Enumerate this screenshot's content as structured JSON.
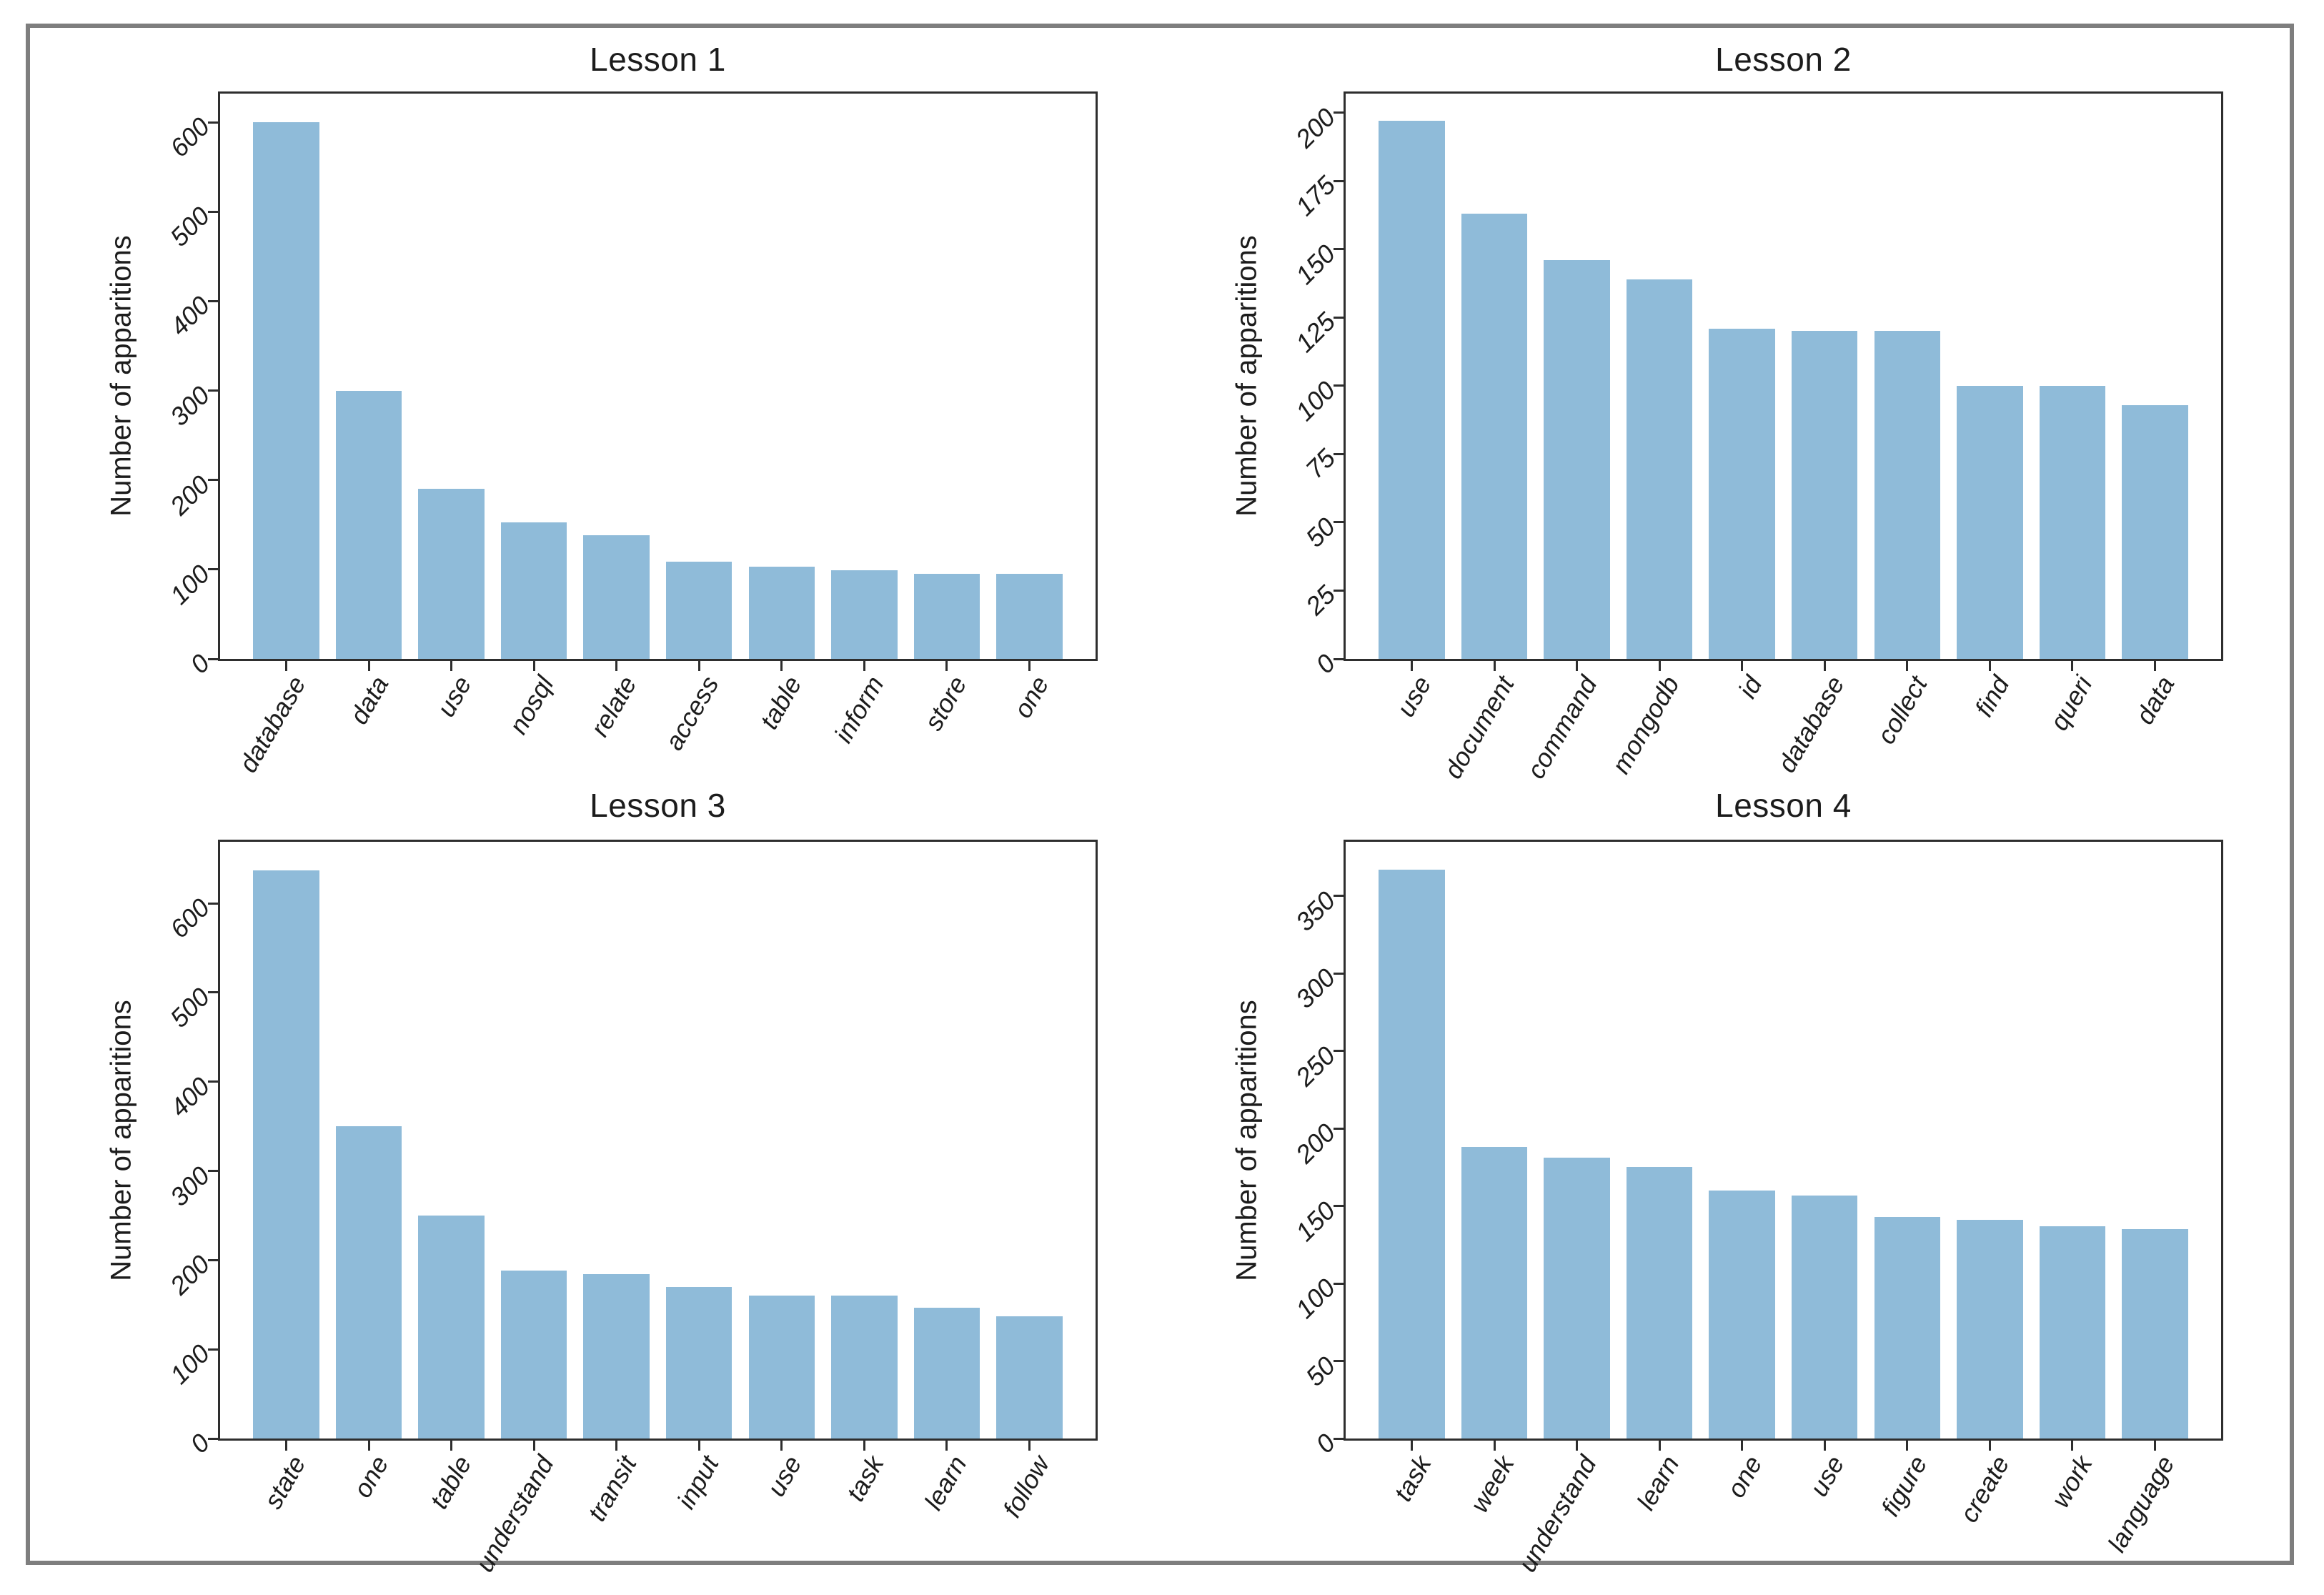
{
  "style": {
    "bar_color": "#8fbbd9",
    "axis_color": "#2e2e2e",
    "text_color": "#1c1c1c",
    "frame_border_color": "#7e7e7e",
    "background": "#ffffff"
  },
  "chart_data": [
    {
      "type": "bar",
      "title": "Lesson 1",
      "ylabel": "Number of apparitions",
      "xlabel": "",
      "categories": [
        "database",
        "data",
        "use",
        "nosql",
        "relate",
        "access",
        "table",
        "inform",
        "store",
        "one"
      ],
      "values": [
        600,
        300,
        190,
        153,
        138,
        109,
        103,
        99,
        95,
        95
      ],
      "yticks": [
        0,
        100,
        200,
        300,
        400,
        500,
        600
      ],
      "ylim": [
        0,
        632
      ],
      "grid": false,
      "legend": "none",
      "tick_label_rotation_x": 60,
      "tick_label_rotation_y": 45
    },
    {
      "type": "bar",
      "title": "Lesson 2",
      "ylabel": "Number of apparitions",
      "xlabel": "",
      "categories": [
        "use",
        "document",
        "command",
        "mongodb",
        "id",
        "database",
        "collect",
        "find",
        "queri",
        "data"
      ],
      "values": [
        197,
        163,
        146,
        139,
        121,
        120,
        120,
        100,
        100,
        93
      ],
      "yticks": [
        0,
        25,
        50,
        75,
        100,
        125,
        150,
        175,
        200
      ],
      "ylim": [
        0,
        207
      ],
      "grid": false,
      "legend": "none",
      "tick_label_rotation_x": 60,
      "tick_label_rotation_y": 45
    },
    {
      "type": "bar",
      "title": "Lesson 3",
      "ylabel": "Number of apparitions",
      "xlabel": "",
      "categories": [
        "state",
        "one",
        "table",
        "understand",
        "transit",
        "input",
        "use",
        "task",
        "learn",
        "follow"
      ],
      "values": [
        637,
        350,
        250,
        188,
        184,
        170,
        160,
        160,
        147,
        137
      ],
      "yticks": [
        0,
        100,
        200,
        300,
        400,
        500,
        600
      ],
      "ylim": [
        0,
        669
      ],
      "grid": false,
      "legend": "none",
      "tick_label_rotation_x": 60,
      "tick_label_rotation_y": 45
    },
    {
      "type": "bar",
      "title": "Lesson 4",
      "ylabel": "Number of apparitions",
      "xlabel": "",
      "categories": [
        "task",
        "week",
        "understand",
        "learn",
        "one",
        "use",
        "figure",
        "create",
        "work",
        "language"
      ],
      "values": [
        367,
        188,
        181,
        175,
        160,
        157,
        143,
        141,
        137,
        135
      ],
      "yticks": [
        0,
        50,
        100,
        150,
        200,
        250,
        300,
        350
      ],
      "ylim": [
        0,
        385
      ],
      "grid": false,
      "legend": "none",
      "tick_label_rotation_x": 60,
      "tick_label_rotation_y": 45
    }
  ]
}
